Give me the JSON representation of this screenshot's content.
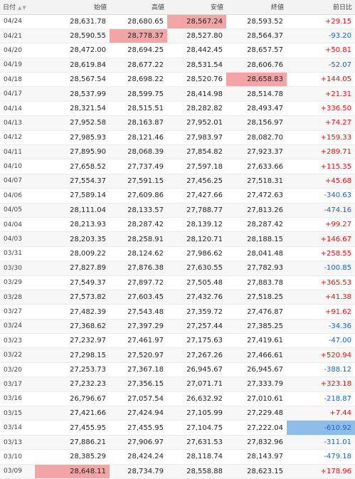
{
  "colors": {
    "up": "#e01010",
    "down": "#1a62c4",
    "highlight_red": "#f3a5a5",
    "highlight_blue": "#8fbde9"
  },
  "table": {
    "headers": {
      "date": "日付",
      "open": "始値",
      "high": "高値",
      "low": "安値",
      "close": "終値",
      "change": "前日比"
    },
    "rows": [
      {
        "date": "04/24",
        "open": "28,631.78",
        "high": "28,680.65",
        "low": "28,567.24",
        "close": "28,593.52",
        "change": "+29.15",
        "dir": "up",
        "hl": "low"
      },
      {
        "date": "04/21",
        "open": "28,590.55",
        "high": "28,778.37",
        "low": "28,527.80",
        "close": "28,564.37",
        "change": "-93.20",
        "dir": "down",
        "hl": "high"
      },
      {
        "date": "04/20",
        "open": "28,472.00",
        "high": "28,694.25",
        "low": "28,442.45",
        "close": "28,657.57",
        "change": "+50.81",
        "dir": "up",
        "hl": ""
      },
      {
        "date": "04/19",
        "open": "28,619.84",
        "high": "28,677.22",
        "low": "28,531.54",
        "close": "28,606.76",
        "change": "-52.07",
        "dir": "down",
        "hl": ""
      },
      {
        "date": "04/18",
        "open": "28,567.54",
        "high": "28,698.22",
        "low": "28,520.76",
        "close": "28,658.83",
        "change": "+144.05",
        "dir": "up",
        "hl": "close"
      },
      {
        "date": "04/17",
        "open": "28,537.99",
        "high": "28,599.75",
        "low": "28,414.98",
        "close": "28,514.78",
        "change": "+21.31",
        "dir": "up",
        "hl": ""
      },
      {
        "date": "04/14",
        "open": "28,321.54",
        "high": "28,515.51",
        "low": "28,282.82",
        "close": "28,493.47",
        "change": "+336.50",
        "dir": "up",
        "hl": ""
      },
      {
        "date": "04/13",
        "open": "27,952.58",
        "high": "28,163.87",
        "low": "27,952.01",
        "close": "28,156.97",
        "change": "+74.27",
        "dir": "up",
        "hl": ""
      },
      {
        "date": "04/12",
        "open": "27,985.93",
        "high": "28,121.46",
        "low": "27,983.97",
        "close": "28,082.70",
        "change": "+159.33",
        "dir": "up",
        "hl": ""
      },
      {
        "date": "04/11",
        "open": "27,895.90",
        "high": "28,068.39",
        "low": "27,854.82",
        "close": "27,923.37",
        "change": "+289.71",
        "dir": "up",
        "hl": ""
      },
      {
        "date": "04/10",
        "open": "27,658.52",
        "high": "27,737.49",
        "low": "27,597.18",
        "close": "27,633.66",
        "change": "+115.35",
        "dir": "up",
        "hl": ""
      },
      {
        "date": "04/07",
        "open": "27,554.37",
        "high": "27,591.15",
        "low": "27,456.25",
        "close": "27,518.31",
        "change": "+45.68",
        "dir": "up",
        "hl": ""
      },
      {
        "date": "04/06",
        "open": "27,589.14",
        "high": "27,609.86",
        "low": "27,427.66",
        "close": "27,472.63",
        "change": "-340.63",
        "dir": "down",
        "hl": ""
      },
      {
        "date": "04/05",
        "open": "28,111.04",
        "high": "28,133.57",
        "low": "27,788.77",
        "close": "27,813.26",
        "change": "-474.16",
        "dir": "down",
        "hl": ""
      },
      {
        "date": "04/04",
        "open": "28,213.93",
        "high": "28,287.42",
        "low": "28,139.12",
        "close": "28,287.42",
        "change": "+99.27",
        "dir": "up",
        "hl": ""
      },
      {
        "date": "04/03",
        "open": "28,203.35",
        "high": "28,258.91",
        "low": "28,120.71",
        "close": "28,188.15",
        "change": "+146.67",
        "dir": "up",
        "hl": ""
      },
      {
        "date": "03/31",
        "open": "28,009.22",
        "high": "28,124.62",
        "low": "27,986.62",
        "close": "28,041.48",
        "change": "+258.55",
        "dir": "up",
        "hl": ""
      },
      {
        "date": "03/30",
        "open": "27,827.89",
        "high": "27,876.38",
        "low": "27,630.55",
        "close": "27,782.93",
        "change": "-100.85",
        "dir": "down",
        "hl": ""
      },
      {
        "date": "03/29",
        "open": "27,549.37",
        "high": "27,897.72",
        "low": "27,505.48",
        "close": "27,883.78",
        "change": "+365.53",
        "dir": "up",
        "hl": ""
      },
      {
        "date": "03/28",
        "open": "27,573.82",
        "high": "27,603.45",
        "low": "27,432.76",
        "close": "27,518.25",
        "change": "+41.38",
        "dir": "up",
        "hl": ""
      },
      {
        "date": "03/27",
        "open": "27,482.39",
        "high": "27,543.48",
        "low": "27,359.72",
        "close": "27,476.87",
        "change": "+91.62",
        "dir": "up",
        "hl": ""
      },
      {
        "date": "03/24",
        "open": "27,368.62",
        "high": "27,397.29",
        "low": "27,257.44",
        "close": "27,385.25",
        "change": "-34.36",
        "dir": "down",
        "hl": ""
      },
      {
        "date": "03/23",
        "open": "27,232.97",
        "high": "27,461.97",
        "low": "27,175.63",
        "close": "27,419.61",
        "change": "-47.00",
        "dir": "down",
        "hl": ""
      },
      {
        "date": "03/22",
        "open": "27,298.15",
        "high": "27,520.97",
        "low": "27,267.26",
        "close": "27,466.61",
        "change": "+520.94",
        "dir": "up",
        "hl": ""
      },
      {
        "date": "03/20",
        "open": "27,253.73",
        "high": "27,367.18",
        "low": "26,945.67",
        "close": "26,945.67",
        "change": "-388.12",
        "dir": "down",
        "hl": ""
      },
      {
        "date": "03/17",
        "open": "27,232.23",
        "high": "27,356.15",
        "low": "27,071.71",
        "close": "27,333.79",
        "change": "+323.18",
        "dir": "up",
        "hl": ""
      },
      {
        "date": "03/16",
        "open": "26,796.67",
        "high": "27,057.54",
        "low": "26,632.92",
        "close": "27,010.61",
        "change": "-218.87",
        "dir": "down",
        "hl": ""
      },
      {
        "date": "03/15",
        "open": "27,421.66",
        "high": "27,424.94",
        "low": "27,105.99",
        "close": "27,229.48",
        "change": "+7.44",
        "dir": "up",
        "hl": ""
      },
      {
        "date": "03/14",
        "open": "27,455.95",
        "high": "27,455.95",
        "low": "27,104.75",
        "close": "27,222.04",
        "change": "-610.92",
        "dir": "down",
        "hl": "change"
      },
      {
        "date": "03/13",
        "open": "27,886.21",
        "high": "27,906.97",
        "low": "27,631.53",
        "close": "27,832.96",
        "change": "-311.01",
        "dir": "down",
        "hl": ""
      },
      {
        "date": "03/10",
        "open": "28,385.29",
        "high": "28,424.24",
        "low": "28,118.74",
        "close": "28,143.97",
        "change": "-479.18",
        "dir": "down",
        "hl": ""
      },
      {
        "date": "03/09",
        "open": "28,648.11",
        "high": "28,734.79",
        "low": "28,558.88",
        "close": "28,623.15",
        "change": "+178.96",
        "dir": "up",
        "hl": "open"
      }
    ]
  }
}
